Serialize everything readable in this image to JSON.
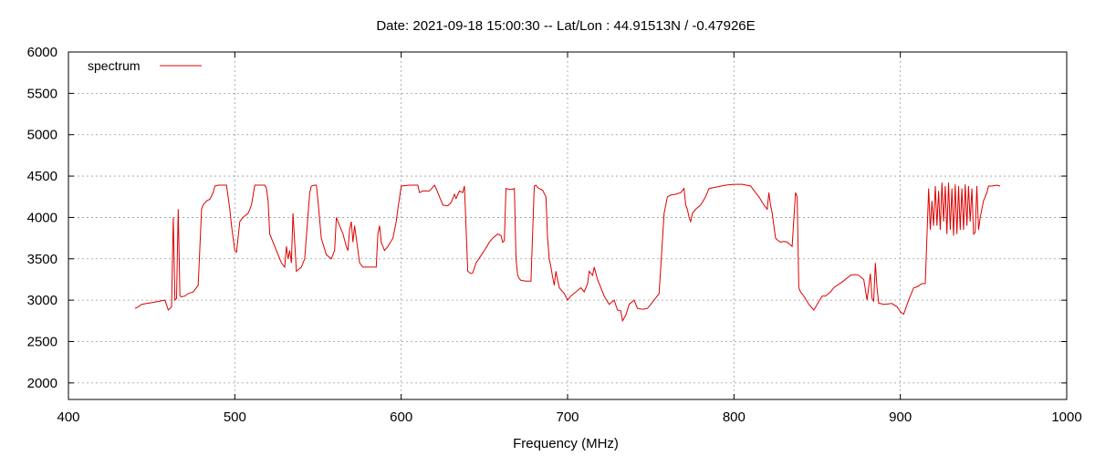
{
  "chart_data": {
    "type": "line",
    "title": "Date: 2021-09-18 15:00:30  --  Lat/Lon : 44.91513N / -0.47926E",
    "xlabel": "Frequency (MHz)",
    "ylabel": "",
    "xlim": [
      400,
      1000
    ],
    "ylim": [
      1800,
      6000
    ],
    "xticks": [
      400,
      500,
      600,
      700,
      800,
      900,
      1000
    ],
    "yticks": [
      2000,
      2500,
      3000,
      3500,
      4000,
      4500,
      5000,
      5500,
      6000
    ],
    "grid": true,
    "legend_position": "top-left",
    "series": [
      {
        "name": "spectrum",
        "color": "#dd0000",
        "x": [
          440,
          442,
          444,
          447,
          450,
          455,
          458,
          460,
          462,
          463,
          464,
          465,
          466,
          467,
          468,
          470,
          472,
          475,
          478,
          480,
          481,
          483,
          485,
          487,
          488,
          490,
          495,
          497,
          498,
          500,
          501,
          503,
          505,
          508,
          510,
          512,
          515,
          518,
          519,
          520,
          521,
          525,
          528,
          530,
          531,
          532,
          533,
          534,
          535,
          537,
          540,
          542,
          545,
          546,
          548,
          549,
          550,
          552,
          555,
          558,
          560,
          561,
          563,
          565,
          567,
          568,
          569,
          570,
          571,
          572,
          575,
          577,
          580,
          585,
          586,
          587,
          588,
          590,
          592,
          595,
          597,
          598,
          600,
          605,
          610,
          611,
          613,
          615,
          617,
          620,
          621,
          622,
          625,
          628,
          630,
          632,
          633,
          635,
          637,
          638,
          640,
          642,
          643,
          645,
          650,
          653,
          655,
          658,
          660,
          661,
          662,
          663,
          665,
          667,
          668,
          669,
          670,
          671,
          672,
          675,
          678,
          680,
          681,
          682,
          683,
          685,
          687,
          688,
          689,
          690,
          691,
          692,
          693,
          695,
          698,
          700,
          702,
          705,
          708,
          710,
          712,
          713,
          715,
          716,
          718,
          720,
          722,
          725,
          728,
          730,
          732,
          733,
          735,
          737,
          740,
          742,
          745,
          748,
          750,
          755,
          758,
          759,
          760,
          762,
          765,
          768,
          770,
          771,
          772,
          773,
          774,
          775,
          777,
          780,
          783,
          785,
          790,
          795,
          800,
          805,
          810,
          813,
          815,
          818,
          820,
          821,
          822,
          823,
          825,
          826,
          828,
          830,
          832,
          835,
          837,
          838,
          839,
          840,
          842,
          845,
          848,
          850,
          853,
          855,
          858,
          860,
          865,
          870,
          873,
          875,
          878,
          880,
          882,
          883,
          884,
          885,
          886,
          887,
          888,
          890,
          895,
          898,
          900,
          902,
          905,
          908,
          910,
          913,
          915,
          917,
          918,
          919,
          920,
          921,
          922,
          923,
          924,
          925,
          926,
          927,
          928,
          929,
          930,
          931,
          932,
          933,
          934,
          935,
          936,
          937,
          938,
          939,
          940,
          941,
          942,
          943,
          944,
          945,
          946,
          947,
          948,
          949,
          950,
          951,
          952,
          953,
          954,
          955,
          958,
          960
        ],
        "y": [
          2900,
          2920,
          2950,
          2960,
          2970,
          2990,
          3000,
          2880,
          2920,
          4000,
          3000,
          3020,
          4100,
          3050,
          3040,
          3050,
          3080,
          3100,
          3180,
          4100,
          4150,
          4200,
          4220,
          4300,
          4380,
          4390,
          4390,
          4100,
          3900,
          3600,
          3580,
          3950,
          4000,
          4050,
          4150,
          4390,
          4390,
          4390,
          4350,
          4200,
          3800,
          3600,
          3450,
          3400,
          3650,
          3500,
          3600,
          3450,
          4050,
          3350,
          3400,
          3500,
          4300,
          4380,
          4390,
          4390,
          4200,
          3750,
          3550,
          3500,
          3600,
          4000,
          3900,
          3800,
          3650,
          3600,
          3850,
          3950,
          3700,
          3900,
          3450,
          3400,
          3400,
          3400,
          3800,
          3900,
          3700,
          3600,
          3650,
          3750,
          3950,
          4100,
          4380,
          4390,
          4390,
          4300,
          4320,
          4320,
          4320,
          4390,
          4350,
          4300,
          4150,
          4140,
          4180,
          4280,
          4230,
          4320,
          4300,
          4380,
          3350,
          3320,
          3330,
          3450,
          3600,
          3700,
          3750,
          3800,
          3780,
          3700,
          3720,
          4350,
          4340,
          4340,
          4350,
          3500,
          3300,
          3260,
          3240,
          3230,
          3230,
          4380,
          4390,
          4360,
          4350,
          4330,
          4250,
          3750,
          3500,
          3400,
          3280,
          3180,
          3350,
          3150,
          3080,
          3000,
          3050,
          3100,
          3150,
          3100,
          3200,
          3350,
          3300,
          3400,
          3250,
          3150,
          3050,
          2950,
          3000,
          2880,
          2870,
          2750,
          2820,
          2950,
          3000,
          2900,
          2890,
          2900,
          2950,
          3080,
          4050,
          4150,
          4250,
          4270,
          4280,
          4300,
          4350,
          4150,
          4100,
          4000,
          3950,
          4050,
          4100,
          4150,
          4250,
          4350,
          4370,
          4390,
          4400,
          4400,
          4380,
          4300,
          4250,
          4150,
          4100,
          4300,
          4150,
          4050,
          3750,
          3730,
          3700,
          3710,
          3700,
          3650,
          4300,
          4250,
          3150,
          3100,
          3050,
          2950,
          2880,
          2950,
          3050,
          3050,
          3100,
          3150,
          3220,
          3300,
          3310,
          3300,
          3250,
          3000,
          3320,
          3020,
          2990,
          3450,
          3150,
          2960,
          2960,
          2950,
          2960,
          2920,
          2860,
          2830,
          3000,
          3150,
          3160,
          3200,
          3200,
          4350,
          3850,
          4200,
          3900,
          4380,
          3900,
          4320,
          3850,
          4420,
          3950,
          4380,
          3800,
          4420,
          3850,
          4350,
          3780,
          4400,
          3800,
          4380,
          3850,
          4350,
          3850,
          4400,
          3900,
          4380,
          3950,
          4350,
          3800,
          3820,
          4380,
          3850,
          4000,
          4100,
          4200,
          4250,
          4300,
          4380,
          4380,
          4380,
          4390,
          4380
        ]
      }
    ]
  }
}
